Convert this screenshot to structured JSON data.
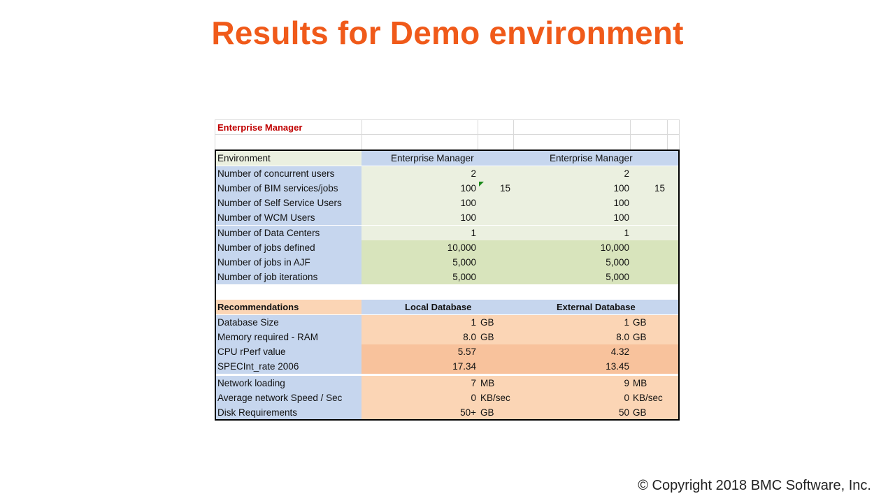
{
  "title": "Results for Demo environment",
  "copyright": "© Copyright 2018 BMC Software, Inc.",
  "sheet_header": "Enterprise Manager",
  "colors": {
    "title": "#f05a1a",
    "header_red": "#c00000",
    "blue": "#c6d6ee",
    "light_green": "#ebf0e0",
    "green": "#d8e4bc",
    "light_orange": "#fbd5b5",
    "orange": "#f8c29c",
    "env_label_bg": "#ebf0e0"
  },
  "env_table": {
    "header": {
      "label": "Environment",
      "col1": "Enterprise Manager",
      "col2": "Enterprise Manager"
    },
    "rows": [
      {
        "label": "Number of concurrent users",
        "v1": "2",
        "u1": "",
        "v2": "2",
        "u2": ""
      },
      {
        "label": "Number of BIM services/jobs",
        "v1": "100",
        "u1": "15",
        "v2": "100",
        "u2": "15"
      },
      {
        "label": "Number of Self Service Users",
        "v1": "100",
        "u1": "",
        "v2": "100",
        "u2": ""
      },
      {
        "label": "Number of WCM Users",
        "v1": "100",
        "u1": "",
        "v2": "100",
        "u2": ""
      },
      {
        "label": "Number of Data Centers",
        "v1": "1",
        "u1": "",
        "v2": "1",
        "u2": ""
      },
      {
        "label": "Number of jobs defined",
        "v1": "10,000",
        "u1": "",
        "v2": "10,000",
        "u2": ""
      },
      {
        "label": "Number of jobs in AJF",
        "v1": "5,000",
        "u1": "",
        "v2": "5,000",
        "u2": ""
      },
      {
        "label": "Number of job iterations",
        "v1": "5,000",
        "u1": "",
        "v2": "5,000",
        "u2": ""
      }
    ]
  },
  "rec_table": {
    "header": {
      "label": "Recommendations",
      "col1": "Local Database",
      "col2": "External Database"
    },
    "rows": [
      {
        "label": "Database Size",
        "v1": "1",
        "u1": "GB",
        "v2": "1",
        "u2": "GB"
      },
      {
        "label": "Memory required - RAM",
        "v1": "8.0",
        "u1": "GB",
        "v2": "8.0",
        "u2": "GB"
      },
      {
        "label": "CPU rPerf value",
        "v1": "5.57",
        "u1": "",
        "v2": "4.32",
        "u2": ""
      },
      {
        "label": "SPECInt_rate 2006",
        "v1": "17.34",
        "u1": "",
        "v2": "13.45",
        "u2": ""
      },
      {
        "label": "Network loading",
        "v1": "7",
        "u1": "MB",
        "v2": "9",
        "u2": "MB"
      },
      {
        "label": "Average network Speed / Sec",
        "v1": "0",
        "u1": "KB/sec",
        "v2": "0",
        "u2": "KB/sec"
      },
      {
        "label": "Disk Requirements",
        "v1": "50+",
        "u1": "GB",
        "v2": "50",
        "u2": "GB"
      }
    ]
  }
}
